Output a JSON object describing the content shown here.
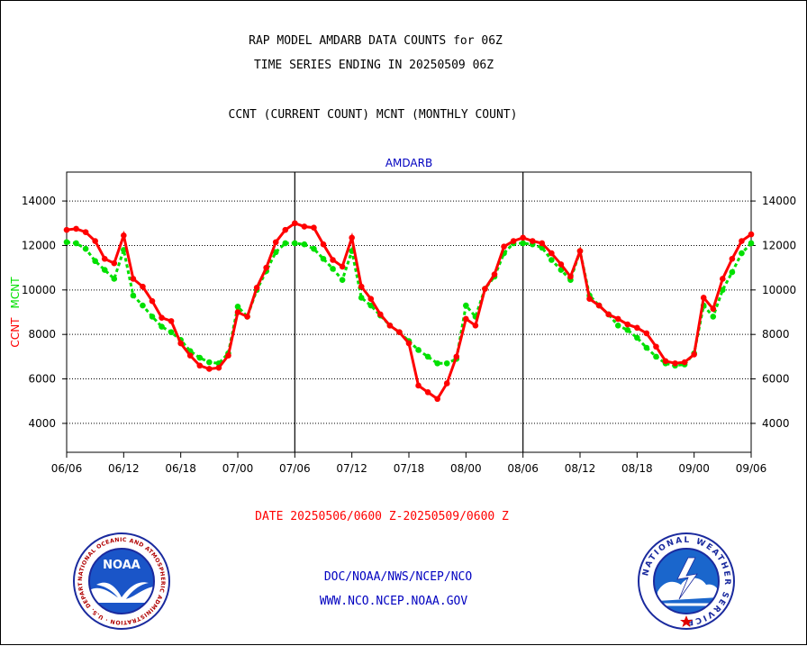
{
  "header": {
    "title1": "RAP MODEL AMDARB DATA COUNTS for 06Z",
    "title2": "TIME SERIES ENDING IN 20250509 06Z",
    "title3": "CCNT (CURRENT COUNT) MCNT (MONTHLY COUNT)"
  },
  "footer": {
    "date_range": "DATE 20250506/0600 Z-20250509/0600 Z",
    "link1": "DOC/NOAA/NWS/NCEP/NCO",
    "link2": "WWW.NCO.NCEP.NOAA.GOV"
  },
  "logos": {
    "noaa_text": "NOAA",
    "noaa_ring": "NATIONAL OCEANIC AND ATMOSPHERIC ADMINISTRATION · U.S. DEPARTMENT OF COMMERCE",
    "nws_ring": "NATIONAL WEATHER SERVICE"
  },
  "colors": {
    "ccnt": "#ff0000",
    "mcnt": "#00e000",
    "footer_date": "#ff0000",
    "footer_links": "#0000c0",
    "panel_title": "#0000c0"
  },
  "chart_data": {
    "type": "line",
    "panel_title": "AMDARB",
    "ylabel_ccnt": "CCNT",
    "ylabel_mcnt": "MCNT",
    "yticks": [
      4000,
      6000,
      8000,
      10000,
      12000,
      14000
    ],
    "ylim": [
      2700,
      15300
    ],
    "x_ticks": [
      "06/06",
      "06/12",
      "06/18",
      "07/00",
      "07/06",
      "07/12",
      "07/18",
      "08/00",
      "08/06",
      "08/12",
      "08/18",
      "09/00",
      "09/06"
    ],
    "xlim": [
      0,
      72
    ],
    "x_unit": "hours since 06/06",
    "grid": true,
    "series": [
      {
        "name": "CCNT",
        "x": [
          0,
          1,
          2,
          3,
          4,
          5,
          6,
          7,
          8,
          9,
          10,
          11,
          12,
          13,
          14,
          15,
          16,
          17,
          18,
          19,
          20,
          21,
          22,
          23,
          24,
          25,
          26,
          27,
          28,
          29,
          30,
          31,
          32,
          33,
          34,
          35,
          36,
          37,
          38,
          39,
          40,
          41,
          42,
          43,
          44,
          45,
          46,
          47,
          48,
          49,
          50,
          51,
          52,
          53,
          54,
          55,
          56,
          57,
          58,
          59,
          60,
          61,
          62,
          63,
          64,
          65,
          66,
          67,
          68,
          69,
          70,
          71,
          72
        ],
        "values": [
          12700,
          12750,
          12600,
          12200,
          11400,
          11200,
          12450,
          10500,
          10150,
          9500,
          8750,
          8600,
          7600,
          7050,
          6600,
          6450,
          6500,
          7050,
          9000,
          8800,
          10100,
          11000,
          12150,
          12700,
          13000,
          12850,
          12800,
          12050,
          11350,
          11050,
          12350,
          10150,
          9600,
          8900,
          8400,
          8100,
          7600,
          5700,
          5400,
          5100,
          5800,
          7000,
          8700,
          8400,
          10050,
          10700,
          11950,
          12200,
          12350,
          12200,
          12100,
          11650,
          11150,
          10600,
          11750,
          9600,
          9300,
          8900,
          8700,
          8450,
          8300,
          8050,
          7450,
          6800,
          6700,
          6750,
          7100,
          9650,
          9150,
          10500,
          11400,
          12200,
          12500
        ]
      },
      {
        "name": "MCNT",
        "x": [
          0,
          1,
          2,
          3,
          4,
          5,
          6,
          7,
          8,
          9,
          10,
          11,
          12,
          13,
          14,
          15,
          16,
          17,
          18,
          19,
          20,
          21,
          22,
          23,
          24,
          25,
          26,
          27,
          28,
          29,
          30,
          31,
          32,
          33,
          34,
          35,
          36,
          37,
          38,
          39,
          40,
          41,
          42,
          43,
          44,
          45,
          46,
          47,
          48,
          49,
          50,
          51,
          52,
          53,
          54,
          55,
          56,
          57,
          58,
          59,
          60,
          61,
          62,
          63,
          64,
          65,
          66,
          67,
          68,
          69,
          70,
          71,
          72
        ],
        "values": [
          12150,
          12100,
          11850,
          11300,
          10900,
          10500,
          11800,
          9750,
          9300,
          8800,
          8350,
          8100,
          7750,
          7250,
          6950,
          6750,
          6700,
          7150,
          9250,
          8800,
          10000,
          10850,
          11700,
          12100,
          12100,
          12050,
          11850,
          11400,
          10950,
          10450,
          11750,
          9650,
          9300,
          8850,
          8400,
          8100,
          7700,
          7300,
          7000,
          6700,
          6700,
          6900,
          9300,
          8800,
          10050,
          10600,
          11650,
          12100,
          12100,
          12050,
          11900,
          11350,
          10900,
          10450,
          11750,
          9750,
          9300,
          8900,
          8400,
          8200,
          7850,
          7400,
          7000,
          6700,
          6600,
          6650,
          7150,
          9300,
          8800,
          10000,
          10800,
          11650,
          12100
        ]
      }
    ]
  }
}
